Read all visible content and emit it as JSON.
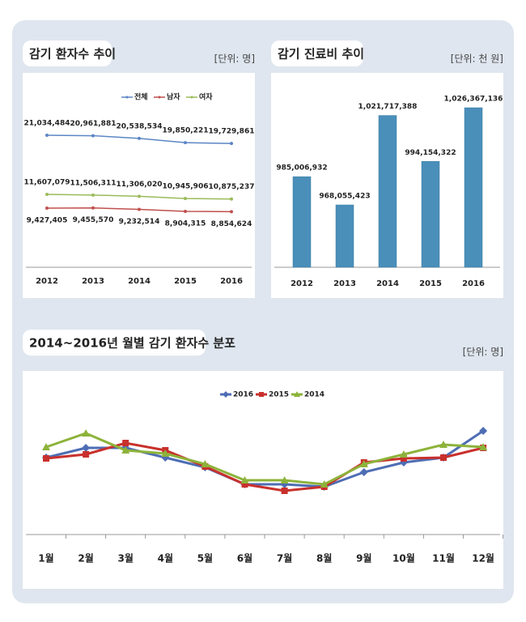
{
  "chart_data": [
    {
      "type": "line",
      "title": "감기 환자수 추이",
      "unit": "[단위: 명]",
      "categories": [
        "2012",
        "2013",
        "2014",
        "2015",
        "2016"
      ],
      "series": [
        {
          "name": "전체",
          "color": "#5b86c5",
          "marker": "circle",
          "values": [
            21034484,
            20961881,
            20538534,
            19850221,
            19729861
          ],
          "value_labels": [
            "21,034,484",
            "20,961,881",
            "20,538,534",
            "19,850,221",
            "19,729,861"
          ]
        },
        {
          "name": "남자",
          "color": "#c0504d",
          "marker": "circle",
          "values": [
            9427405,
            9455570,
            9232514,
            8904315,
            8854624
          ],
          "value_labels": [
            "9,427,405",
            "9,455,570",
            "9,232,514",
            "8,904,315",
            "8,854,624"
          ]
        },
        {
          "name": "여자",
          "color": "#9bbb59",
          "marker": "circle",
          "values": [
            11607079,
            11506311,
            11306020,
            10945906,
            10875237
          ],
          "value_labels": [
            "11,607,079",
            "11,506,311",
            "11,306,020",
            "10,945,906",
            "10,875,237"
          ]
        }
      ],
      "legend": "top"
    },
    {
      "type": "bar",
      "title": "감기 진료비 추이",
      "unit": "[단위: 천 원]",
      "categories": [
        "2012",
        "2013",
        "2014",
        "2015",
        "2016"
      ],
      "values": [
        985006932,
        968055423,
        1021717388,
        994154322,
        1026367136
      ],
      "value_labels": [
        "985,006,932",
        "968,055,423",
        "1,021,717,388",
        "994,154,322",
        "1,026,367,136"
      ],
      "color": "#4a8fba"
    },
    {
      "type": "line",
      "title": "2014~2016년 월별 감기 환자수 분포",
      "unit": "[단위: 명]",
      "categories": [
        "1월",
        "2월",
        "3월",
        "4월",
        "5월",
        "6월",
        "7월",
        "8월",
        "9월",
        "10월",
        "11월",
        "12월"
      ],
      "series": [
        {
          "name": "2016",
          "color": "#4e6db4",
          "marker": "diamond",
          "values": [
            95,
            107,
            107,
            95,
            83,
            62,
            62,
            59,
            77,
            89,
            95,
            128
          ]
        },
        {
          "name": "2015",
          "color": "#c9302c",
          "marker": "square",
          "values": [
            94,
            99,
            113,
            104,
            84,
            62,
            54,
            59,
            89,
            94,
            95,
            107
          ]
        },
        {
          "name": "2014",
          "color": "#8db33a",
          "marker": "triangle",
          "values": [
            108,
            125,
            104,
            100,
            87,
            67,
            67,
            62,
            87,
            99,
            111,
            108
          ]
        }
      ],
      "legend": "top"
    }
  ]
}
